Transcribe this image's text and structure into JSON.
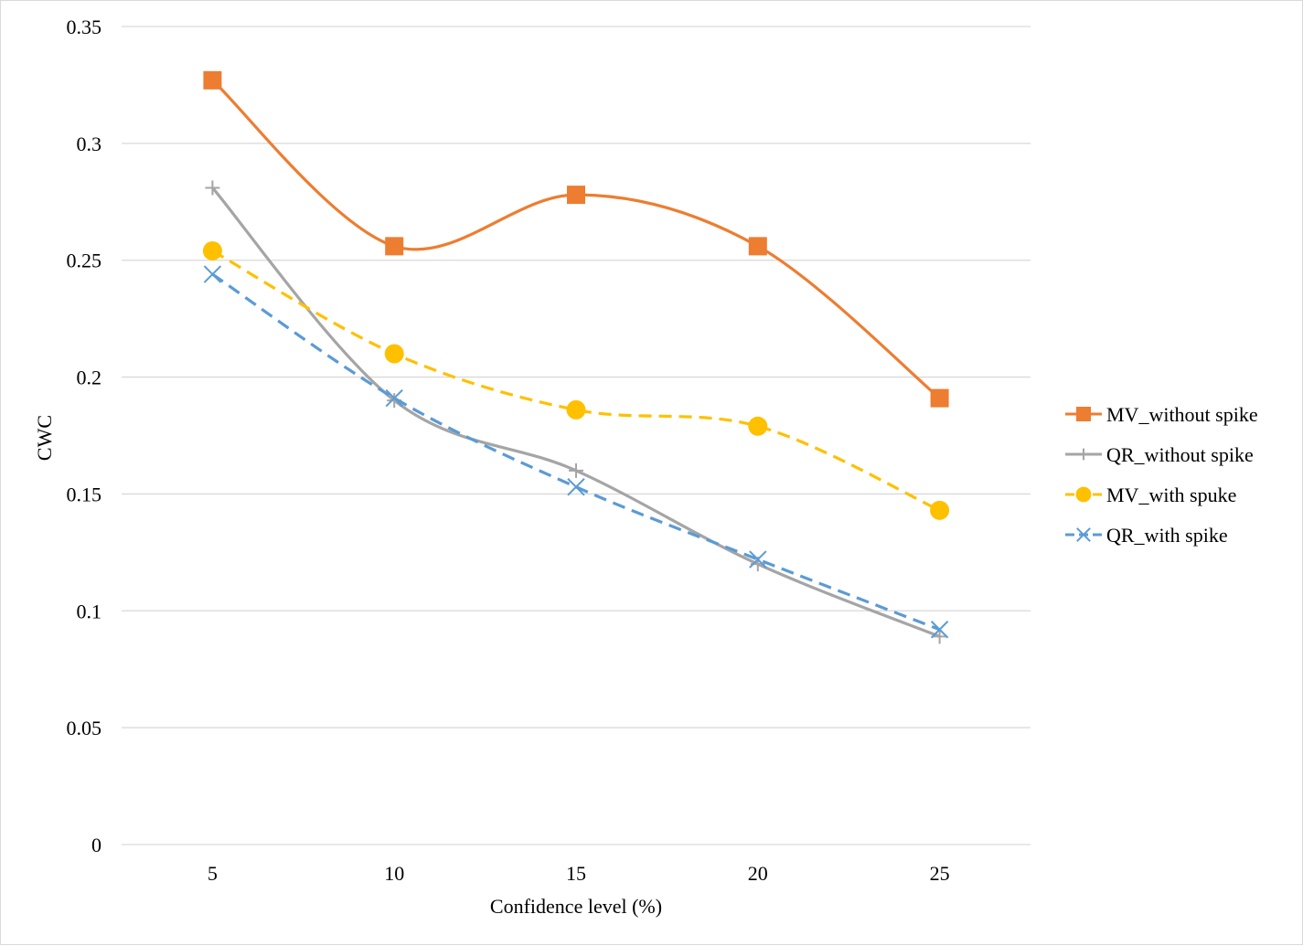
{
  "chart_data": {
    "type": "line",
    "title": "",
    "xlabel": "Confidence level (%)",
    "ylabel": "CWC",
    "categories": [
      "5",
      "10",
      "15",
      "20",
      "25"
    ],
    "ylim": [
      0,
      0.35
    ],
    "yticks": [
      "0",
      "0.05",
      "0.1",
      "0.15",
      "0.2",
      "0.25",
      "0.3",
      "0.35"
    ],
    "grid": "horizontal",
    "legend_position": "right",
    "smooth": true,
    "series": [
      {
        "name": "MV_without spike",
        "values": [
          0.327,
          0.256,
          0.278,
          0.256,
          0.191
        ],
        "color": "#ED7D31",
        "marker": "square",
        "line": "solid"
      },
      {
        "name": "QR_without spike",
        "values": [
          0.281,
          0.19,
          0.16,
          0.12,
          0.089
        ],
        "color": "#A5A5A5",
        "marker": "plus",
        "line": "solid"
      },
      {
        "name": "MV_with spuke",
        "values": [
          0.254,
          0.21,
          0.186,
          0.179,
          0.143
        ],
        "color": "#FFC000",
        "marker": "circle",
        "line": "dashed"
      },
      {
        "name": "QR_with spike",
        "values": [
          0.244,
          0.191,
          0.153,
          0.122,
          0.092
        ],
        "color": "#5B9BD5",
        "marker": "x",
        "line": "dashed"
      }
    ]
  }
}
